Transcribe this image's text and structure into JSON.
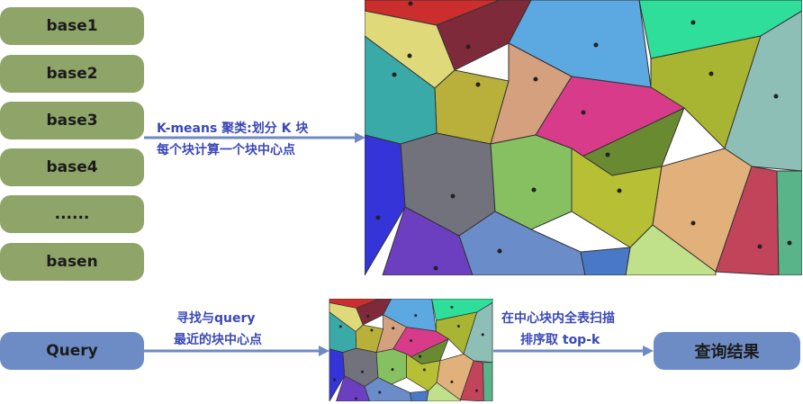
{
  "bases": [
    "base1",
    "base2",
    "base3",
    "base4",
    "......",
    "basen"
  ],
  "kmeans_label": [
    "K-means 聚类:划分 K 块",
    "每个块计算一个块中心点"
  ],
  "query_label": "Query",
  "find_label": [
    "寻找与query",
    "最近的块中心点"
  ],
  "scan_label": [
    "在中心块内全表扫描",
    "排序取 top-k"
  ],
  "result_label": "查询结果",
  "colors": {
    "base_box": "#8fa469",
    "query_box": "#6d8cc6",
    "arrow": "#7089c4",
    "label_text": "#3a48b8"
  }
}
